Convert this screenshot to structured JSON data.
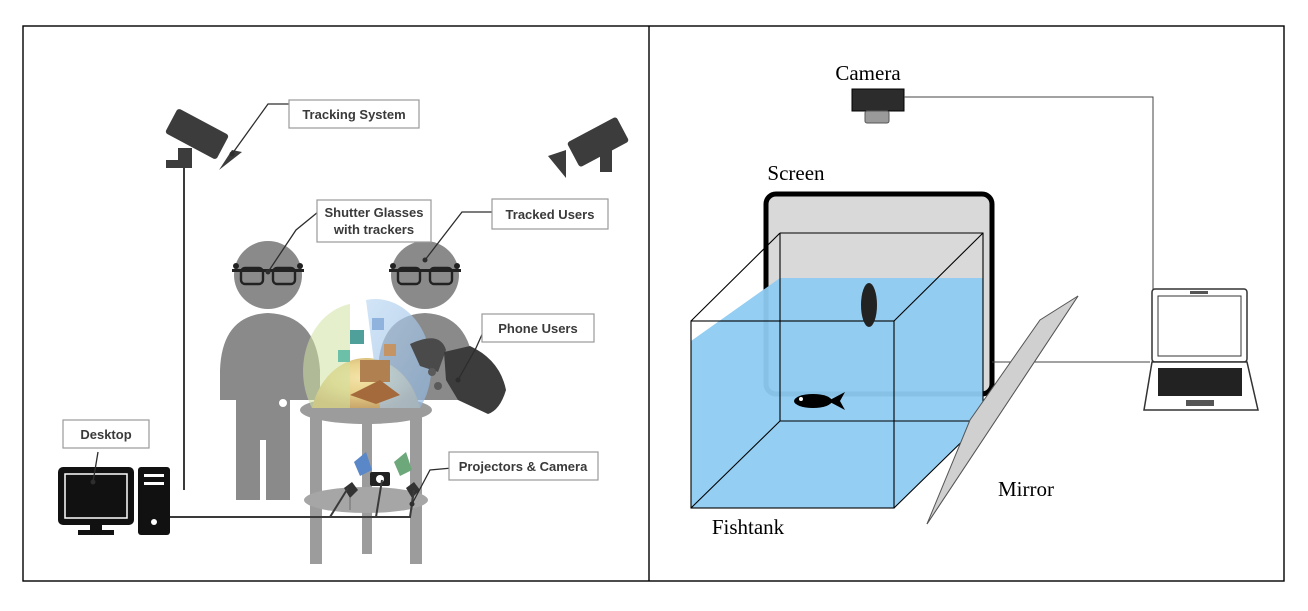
{
  "left_panel": {
    "labels": {
      "tracking_system": "Tracking System",
      "shutter_glasses_line1": "Shutter Glasses",
      "shutter_glasses_line2": "with trackers",
      "tracked_users": "Tracked Users",
      "phone_users": "Phone Users",
      "desktop": "Desktop",
      "projectors_camera": "Projectors & Camera"
    }
  },
  "right_panel": {
    "labels": {
      "camera": "Camera",
      "screen": "Screen",
      "mirror": "Mirror",
      "fishtank": "Fishtank"
    }
  },
  "colors": {
    "water": "#8ecbf2",
    "screen_fill": "#d9d9d9",
    "mirror_fill": "#cfcfcf",
    "person": "#8a8a8a",
    "device_dark": "#3c3c3c"
  }
}
